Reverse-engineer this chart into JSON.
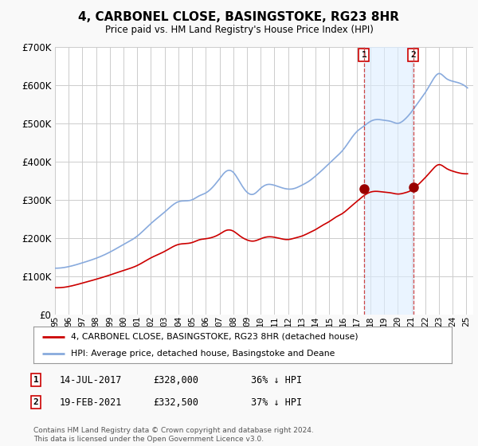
{
  "title": "4, CARBONEL CLOSE, BASINGSTOKE, RG23 8HR",
  "subtitle": "Price paid vs. HM Land Registry's House Price Index (HPI)",
  "background_color": "#f9f9f9",
  "plot_bg_color": "#ffffff",
  "grid_color": "#cccccc",
  "hpi_color": "#88aadd",
  "price_color": "#cc0000",
  "marker_color": "#990000",
  "shade_color": "#ddeeff",
  "transaction1": {
    "date": "14-JUL-2017",
    "price": 328000,
    "hpi_diff": "36% ↓ HPI",
    "label": "1"
  },
  "transaction2": {
    "date": "19-FEB-2021",
    "price": 332500,
    "hpi_diff": "37% ↓ HPI",
    "label": "2"
  },
  "legend_line1": "4, CARBONEL CLOSE, BASINGSTOKE, RG23 8HR (detached house)",
  "legend_line2": "HPI: Average price, detached house, Basingstoke and Deane",
  "footer": "Contains HM Land Registry data © Crown copyright and database right 2024.\nThis data is licensed under the Open Government Licence v3.0.",
  "t1_x": 2017.54,
  "t1_y": 328000,
  "t2_x": 2021.12,
  "t2_y": 332500,
  "ylim": [
    0,
    700000
  ],
  "yticks": [
    0,
    100000,
    200000,
    300000,
    400000,
    500000,
    600000,
    700000
  ],
  "xlim": [
    1995,
    2025.5
  ],
  "xticks": [
    1995,
    1996,
    1997,
    1998,
    1999,
    2000,
    2001,
    2002,
    2003,
    2004,
    2005,
    2006,
    2007,
    2008,
    2009,
    2010,
    2011,
    2012,
    2013,
    2014,
    2015,
    2016,
    2017,
    2018,
    2019,
    2020,
    2021,
    2022,
    2023,
    2024,
    2025
  ]
}
